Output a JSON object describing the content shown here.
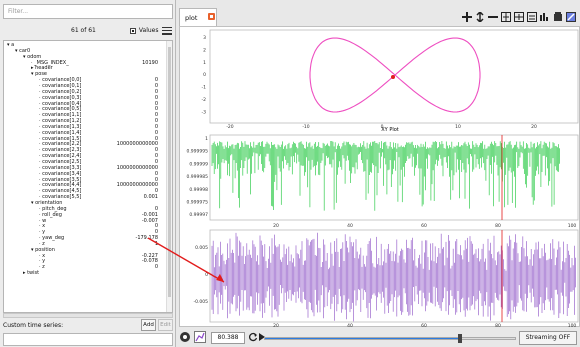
{
  "sidebar": {
    "filter_placeholder": "Filter...",
    "count": "61 of 61",
    "values_label": "Values",
    "custom_label": "Custom time series:",
    "add_label": "Add",
    "edit_label": "Edit",
    "tree": [
      {
        "label": "a",
        "value": "",
        "indent": 0,
        "expander": "▾"
      },
      {
        "label": "car0",
        "value": "",
        "indent": 1,
        "expander": "▾"
      },
      {
        "label": "odom",
        "value": "",
        "indent": 2,
        "expander": "▾"
      },
      {
        "label": "_MSG_INDEX_",
        "value": "10190",
        "indent": 3,
        "expander": ""
      },
      {
        "label": "header",
        "value": "",
        "indent": 3,
        "expander": "▸"
      },
      {
        "label": "pose",
        "value": "",
        "indent": 3,
        "expander": "▾"
      },
      {
        "label": "covariance[0,0]",
        "value": "0",
        "indent": 4,
        "expander": ""
      },
      {
        "label": "covariance[0,1]",
        "value": "0",
        "indent": 4,
        "expander": ""
      },
      {
        "label": "covariance[0,2]",
        "value": "0",
        "indent": 4,
        "expander": ""
      },
      {
        "label": "covariance[0,3]",
        "value": "0",
        "indent": 4,
        "expander": ""
      },
      {
        "label": "covariance[0,4]",
        "value": "0",
        "indent": 4,
        "expander": ""
      },
      {
        "label": "covariance[0,5]",
        "value": "0",
        "indent": 4,
        "expander": ""
      },
      {
        "label": "covariance[1,1]",
        "value": "0",
        "indent": 4,
        "expander": ""
      },
      {
        "label": "covariance[1,2]",
        "value": "0",
        "indent": 4,
        "expander": ""
      },
      {
        "label": "covariance[1,3]",
        "value": "0",
        "indent": 4,
        "expander": ""
      },
      {
        "label": "covariance[1,4]",
        "value": "0",
        "indent": 4,
        "expander": ""
      },
      {
        "label": "covariance[1,5]",
        "value": "0",
        "indent": 4,
        "expander": ""
      },
      {
        "label": "covariance[2,2]",
        "value": "1000000000000",
        "indent": 4,
        "expander": ""
      },
      {
        "label": "covariance[2,3]",
        "value": "0",
        "indent": 4,
        "expander": ""
      },
      {
        "label": "covariance[2,4]",
        "value": "0",
        "indent": 4,
        "expander": ""
      },
      {
        "label": "covariance[2,5]",
        "value": "0",
        "indent": 4,
        "expander": ""
      },
      {
        "label": "covariance[3,3]",
        "value": "1000000000000",
        "indent": 4,
        "expander": ""
      },
      {
        "label": "covariance[3,4]",
        "value": "0",
        "indent": 4,
        "expander": ""
      },
      {
        "label": "covariance[3,5]",
        "value": "0",
        "indent": 4,
        "expander": ""
      },
      {
        "label": "covariance[4,4]",
        "value": "1000000000000",
        "indent": 4,
        "expander": ""
      },
      {
        "label": "covariance[4,5]",
        "value": "0",
        "indent": 4,
        "expander": ""
      },
      {
        "label": "covariance[5,5]",
        "value": "0.001",
        "indent": 4,
        "expander": ""
      },
      {
        "label": "orientation",
        "value": "",
        "indent": 3,
        "expander": "▾"
      },
      {
        "label": "pitch_deg",
        "value": "0",
        "indent": 4,
        "expander": ""
      },
      {
        "label": "roll_deg",
        "value": "-0.001",
        "indent": 4,
        "expander": ""
      },
      {
        "label": "w",
        "value": "-0.007",
        "indent": 4,
        "expander": ""
      },
      {
        "label": "x",
        "value": "0",
        "indent": 4,
        "expander": ""
      },
      {
        "label": "y",
        "value": "0",
        "indent": 4,
        "expander": ""
      },
      {
        "label": "yaw_deg",
        "value": "-179.178",
        "indent": 4,
        "expander": ""
      },
      {
        "label": "z",
        "value": "1",
        "indent": 4,
        "expander": ""
      },
      {
        "label": "position",
        "value": "",
        "indent": 3,
        "expander": "▾"
      },
      {
        "label": "x",
        "value": "-0.227",
        "indent": 4,
        "expander": ""
      },
      {
        "label": "y",
        "value": "-0.078",
        "indent": 4,
        "expander": ""
      },
      {
        "label": "z",
        "value": "0",
        "indent": 4,
        "expander": ""
      },
      {
        "label": "twist",
        "value": "",
        "indent": 2,
        "expander": "▸"
      }
    ]
  },
  "plots": {
    "tab_label": "plot",
    "xy": {
      "title": "XY Plot",
      "x_ticks": [
        "-20",
        "-10",
        "0",
        "10",
        "20"
      ],
      "y_ticks": [
        "3",
        "2",
        "1",
        "0",
        "-1",
        "-2",
        "-3"
      ]
    },
    "green": {
      "y_ticks": [
        "1",
        "0.999995",
        "0.99999",
        "0.999985",
        "0.99998",
        "0.999975",
        "0.99997"
      ],
      "x_ticks": [
        "20",
        "40",
        "60",
        "80",
        "100"
      ]
    },
    "purple": {
      "y_ticks": [
        "0.005",
        "0",
        "-0.005"
      ],
      "x_ticks": [
        "20",
        "40",
        "60",
        "80",
        "100"
      ]
    }
  },
  "bottom": {
    "time_value": "80.388",
    "streaming_label": "Streaming OFF",
    "slider_position": 0.78
  },
  "colors": {
    "pink": "#ee4fc1",
    "green": "#33cc4e",
    "purple": "#9a66cc",
    "red": "#e21c1c",
    "accent": "#2b7be0"
  }
}
